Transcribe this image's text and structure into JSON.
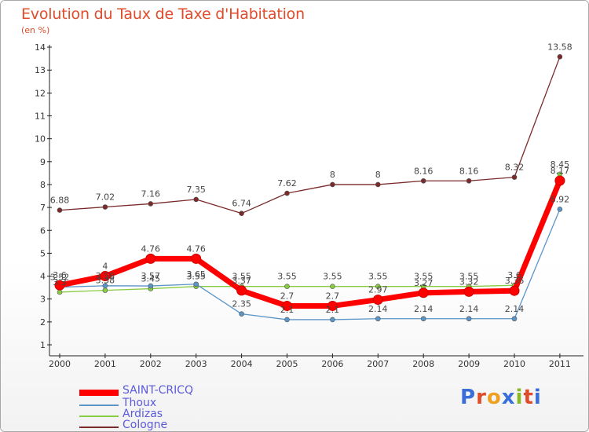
{
  "header": {
    "title": "Evolution du Taux de Taxe d'Habitation",
    "subtitle": "(en %)"
  },
  "logo": {
    "text": "Proxiti"
  },
  "chart_data": {
    "type": "line",
    "x": [
      "2000",
      "2001",
      "2002",
      "2003",
      "2004",
      "2005",
      "2006",
      "2007",
      "2008",
      "2009",
      "2010",
      "2011"
    ],
    "ylim": [
      1,
      14
    ],
    "yticks": [
      "1",
      "2",
      "3",
      "4",
      "5",
      "6",
      "7",
      "8",
      "9",
      "10",
      "11",
      "12",
      "13",
      "14"
    ],
    "legend_position": "bottom-left",
    "series": [
      {
        "name": "SAINT-CRICQ",
        "color": "#ff0000",
        "values": [
          3.6,
          4,
          4.76,
          4.76,
          3.37,
          2.7,
          2.7,
          2.97,
          3.27,
          3.32,
          3.36,
          8.17
        ],
        "labels": [
          "3.6",
          "4",
          "4.76",
          "4.76",
          "3.37",
          "2.7",
          "2.7",
          "2.97",
          "3.27",
          "3.32",
          "3.36",
          "8.17"
        ]
      },
      {
        "name": "Thoux",
        "color": "#5b95c8",
        "values": [
          3.52,
          3.58,
          3.57,
          3.65,
          2.35,
          2.1,
          2.1,
          2.14,
          2.14,
          2.14,
          2.14,
          6.92
        ],
        "labels": [
          "3.52",
          "3.58",
          "3.57",
          "3.65",
          "2.35",
          "2.1",
          "2.1",
          "2.14",
          "2.14",
          "2.14",
          "2.14",
          "6.92"
        ]
      },
      {
        "name": "Ardizas",
        "color": "#88cc44",
        "values": [
          3.3,
          3.38,
          3.45,
          3.55,
          3.55,
          3.55,
          3.55,
          3.55,
          3.55,
          3.55,
          3.6,
          8.45
        ],
        "labels": [
          "3.3",
          "3.38",
          "3.45",
          "3.55",
          "3.55",
          "3.55",
          "3.55",
          "3.55",
          "3.55",
          "3.55",
          "3.6",
          "8.45"
        ]
      },
      {
        "name": "Cologne",
        "color": "#7a2a2a",
        "values": [
          6.88,
          7.02,
          7.16,
          7.35,
          6.74,
          7.62,
          8,
          8,
          8.16,
          8.16,
          8.32,
          13.58
        ],
        "labels": [
          "6.88",
          "7.02",
          "7.16",
          "7.35",
          "6.74",
          "7.62",
          "8",
          "8",
          "8.16",
          "8.16",
          "8.32",
          "13.58"
        ]
      }
    ]
  }
}
